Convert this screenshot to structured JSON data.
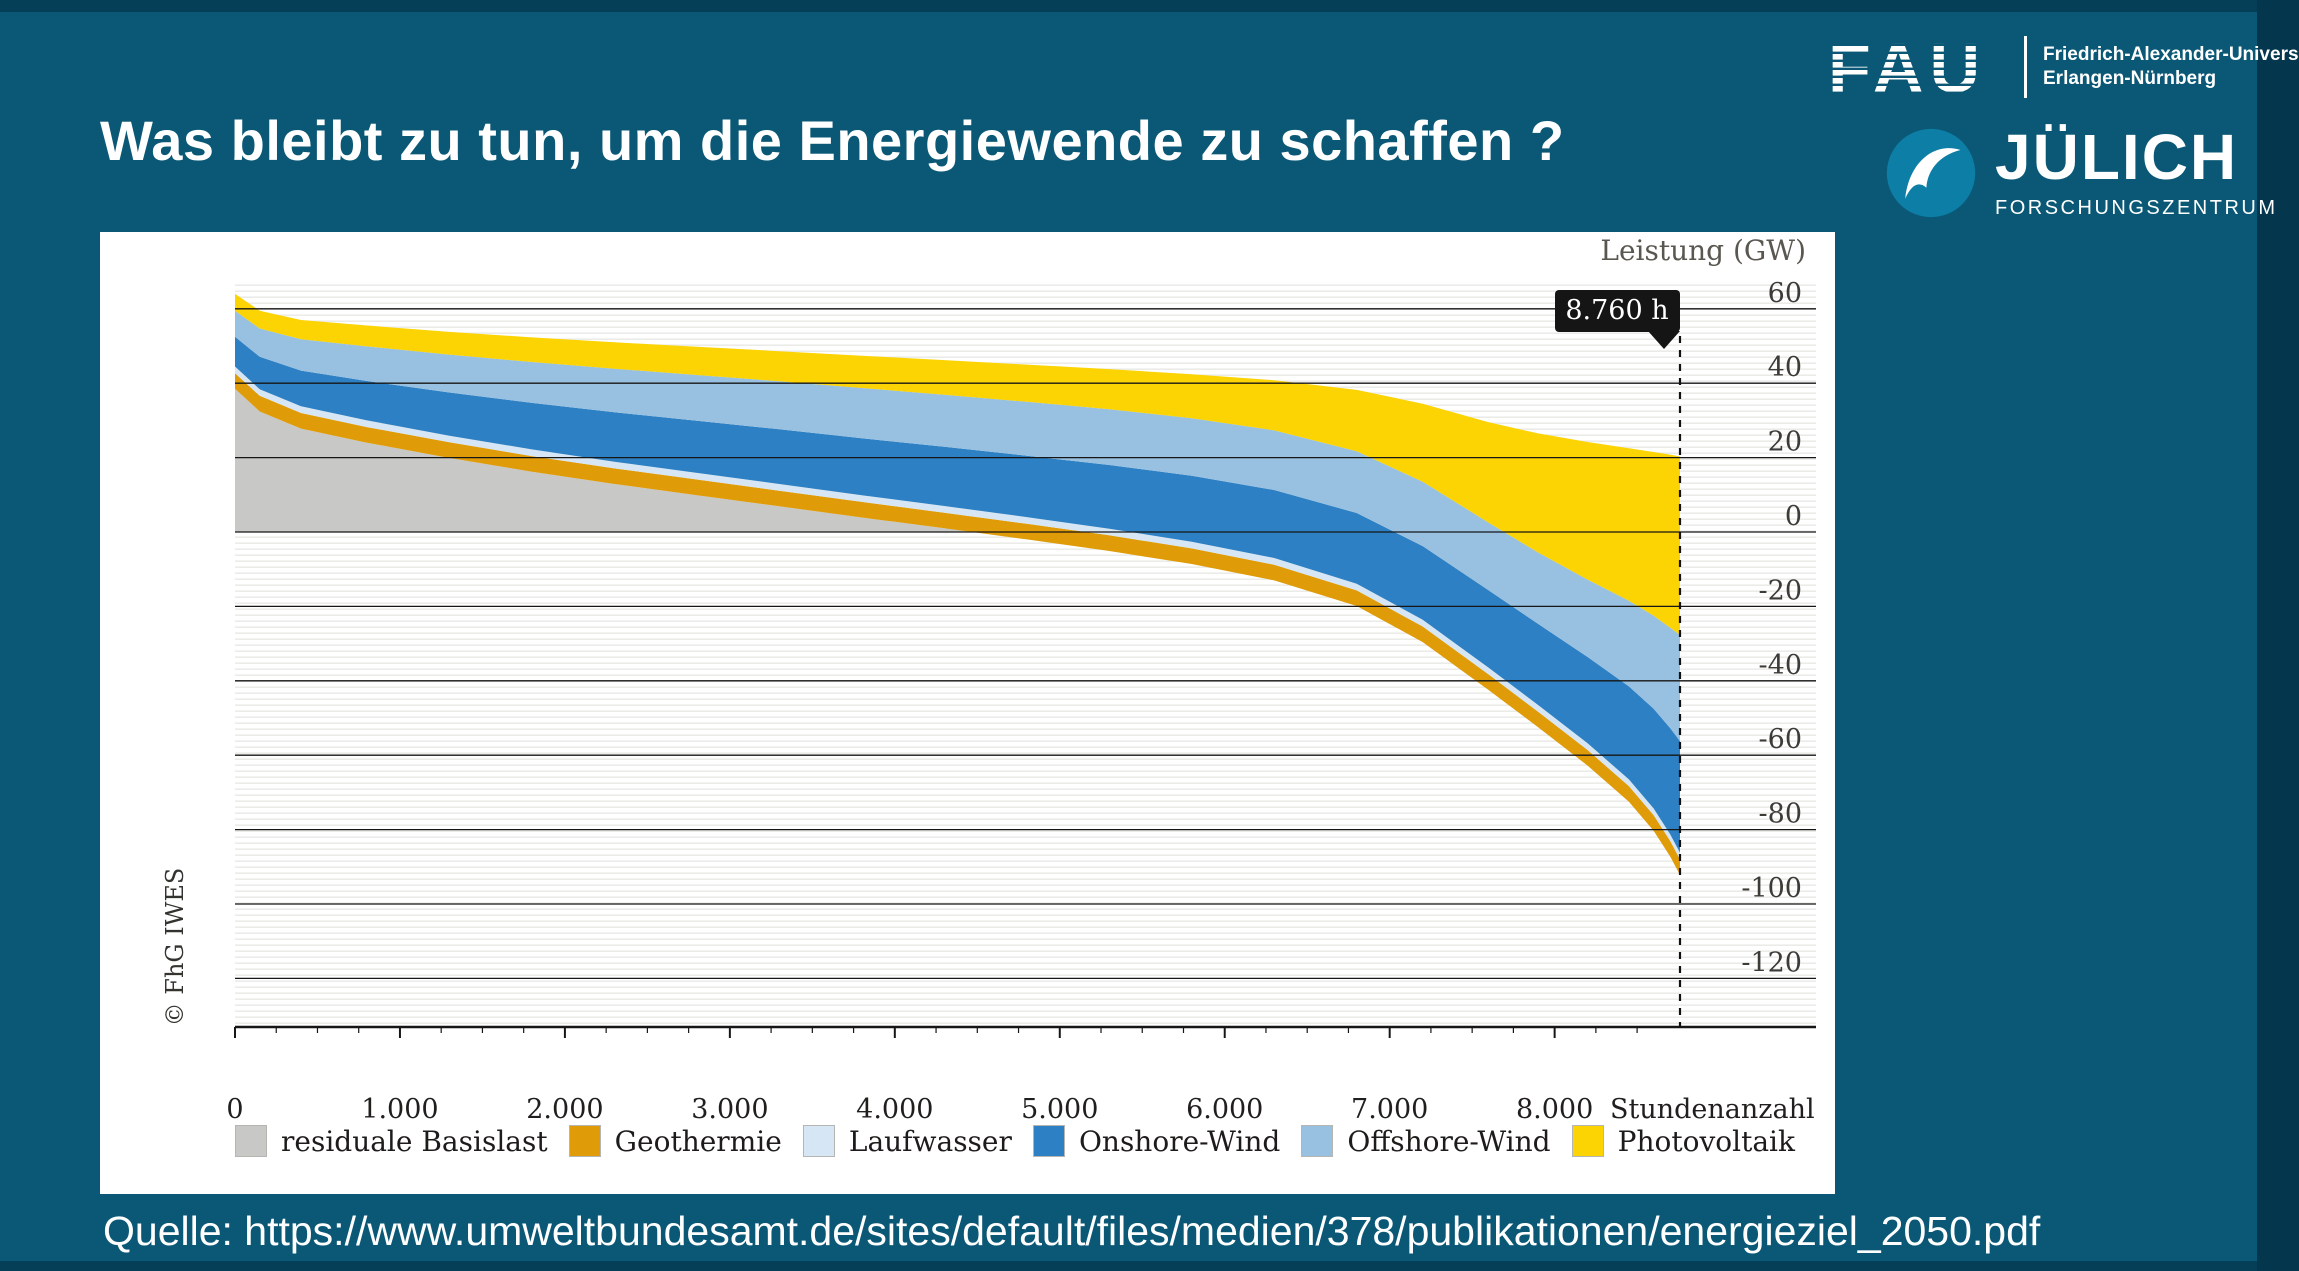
{
  "slide": {
    "title": "Was bleibt zu tun, um die Energiewende zu schaffen ?",
    "source": "Quelle: https://www.umweltbundesamt.de/sites/default/files/medien/378/publikationen/energieziel_2050.pdf",
    "background_color": "#0a5875"
  },
  "logos": {
    "fau_acronym": "FAU",
    "fau_line1": "Friedrich-Alexander-Univers",
    "fau_line2": "Erlangen-Nürnberg",
    "juelich_name": "JÜLICH",
    "juelich_subtitle": "FORSCHUNGSZENTRUM"
  },
  "chart_data": {
    "type": "area",
    "variant": "stacked-annual-duration-curve",
    "title": "",
    "ylabel": "Leistung (GW)",
    "xlabel": "Stundenanzahl",
    "copyright": "© FhG IWES",
    "annotation": "8.760 h",
    "annotation_x": 8760,
    "xlim": [
      0,
      8760
    ],
    "ylim": [
      -130,
      66
    ],
    "grid": true,
    "y_ticks": [
      60,
      40,
      20,
      0,
      -20,
      -40,
      -60,
      -80,
      -100,
      -120
    ],
    "x_ticks": [
      {
        "value": 0,
        "label": "0"
      },
      {
        "value": 1000,
        "label": "1.000"
      },
      {
        "value": 2000,
        "label": "2.000"
      },
      {
        "value": 3000,
        "label": "3.000"
      },
      {
        "value": 4000,
        "label": "4.000"
      },
      {
        "value": 5000,
        "label": "5.000"
      },
      {
        "value": 6000,
        "label": "6.000"
      },
      {
        "value": 7000,
        "label": "7.000"
      },
      {
        "value": 8000,
        "label": "8.000"
      }
    ],
    "x": [
      0,
      150,
      400,
      800,
      1300,
      1800,
      2300,
      2800,
      3300,
      3800,
      4300,
      4800,
      5300,
      5800,
      6300,
      6800,
      7200,
      7600,
      7900,
      8200,
      8450,
      8600,
      8700,
      8760
    ],
    "boundaries": {
      "top": [
        64,
        59.5,
        57,
        55.5,
        53.8,
        52.3,
        51,
        49.8,
        48.6,
        47.4,
        46.2,
        45,
        43.8,
        42.4,
        40.8,
        38.2,
        34.5,
        29.5,
        26.5,
        24.2,
        22.5,
        21.5,
        20.8,
        20.3
      ],
      "pv_bottom": [
        59.5,
        54.7,
        51.8,
        49.9,
        47.7,
        45.7,
        43.9,
        42.2,
        40.5,
        38.7,
        36.9,
        35,
        33,
        30.6,
        27.3,
        21.7,
        13.5,
        2.5,
        -5.5,
        -12.8,
        -18.5,
        -22.5,
        -25.7,
        -27.7
      ],
      "offshore_bottom": [
        52.5,
        47.1,
        43.4,
        40.6,
        37.5,
        34.7,
        32.2,
        29.9,
        27.6,
        25.2,
        22.9,
        20.5,
        18,
        15.1,
        11.3,
        5.1,
        -3.8,
        -15.7,
        -24.7,
        -33.6,
        -41.5,
        -47.5,
        -52.7,
        -56.2
      ],
      "onshore_bottom": [
        44.5,
        38.4,
        33.8,
        30,
        25.9,
        22.2,
        18.9,
        15.9,
        12.9,
        9.9,
        7,
        4,
        0.9,
        -2.6,
        -7,
        -13.9,
        -23.6,
        -36.5,
        -46.5,
        -56.8,
        -66.5,
        -74.3,
        -81.2,
        -86.2
      ],
      "laufwasser_bottom": [
        42.7,
        36.6,
        32,
        28.2,
        24.1,
        20.4,
        17.1,
        14.1,
        11.1,
        8.1,
        5.2,
        2.2,
        -0.9,
        -4.4,
        -8.8,
        -15.7,
        -25.4,
        -38.3,
        -48.3,
        -58.6,
        -68.3,
        -76.1,
        -83,
        -88
      ],
      "geothermie_bottom": [
        38.5,
        32.4,
        27.8,
        24,
        19.9,
        16.2,
        12.9,
        9.9,
        6.9,
        3.9,
        1,
        -2,
        -5.1,
        -8.6,
        -13,
        -19.9,
        -29.6,
        -42.5,
        -52.5,
        -62.8,
        -72.5,
        -80.3,
        -87.2,
        -92.2
      ]
    },
    "legend": [
      {
        "label": "residuale Basislast",
        "color": "#c8c8c6"
      },
      {
        "label": "Geothermie",
        "color": "#e09c08"
      },
      {
        "label": "Laufwasser",
        "color": "#d7e6f4"
      },
      {
        "label": "Onshore-Wind",
        "color": "#2c80c3"
      },
      {
        "label": "Offshore-Wind",
        "color": "#98c0e0"
      },
      {
        "label": "Photovoltaik",
        "color": "#fcd303"
      }
    ],
    "legend_position": "bottom"
  }
}
